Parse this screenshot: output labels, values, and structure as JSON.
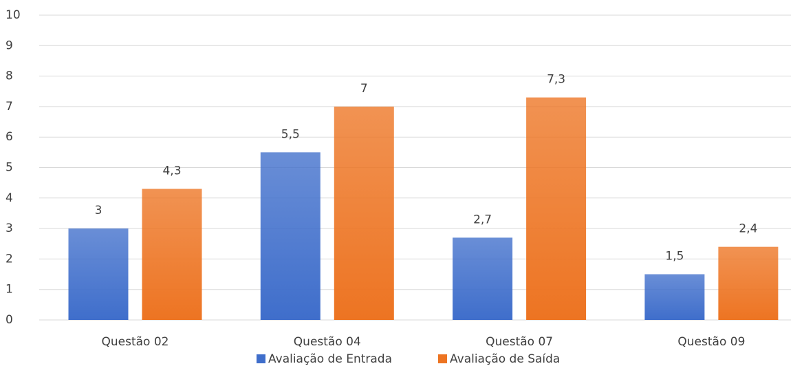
{
  "chart_data": {
    "type": "bar",
    "categories": [
      "Questão 02",
      "Questão 04",
      "Questão 07",
      "Questão 09"
    ],
    "series": [
      {
        "name": "Avaliação de Entrada",
        "color": "#3f6ecb",
        "values": [
          3,
          5.5,
          2.7,
          1.5
        ],
        "value_labels": [
          "3",
          "5,5",
          "2,7",
          "1,5"
        ]
      },
      {
        "name": "Avaliação de Saída",
        "color": "#ed7422",
        "values": [
          4.3,
          7,
          7.3,
          2.4
        ],
        "value_labels": [
          "4,3",
          "7",
          "7,3",
          "2,4"
        ]
      }
    ],
    "ylim": [
      0,
      10
    ],
    "yticks": [
      0,
      1,
      2,
      3,
      4,
      5,
      6,
      7,
      8,
      9,
      10
    ],
    "grid": true,
    "legend": "bottom"
  }
}
